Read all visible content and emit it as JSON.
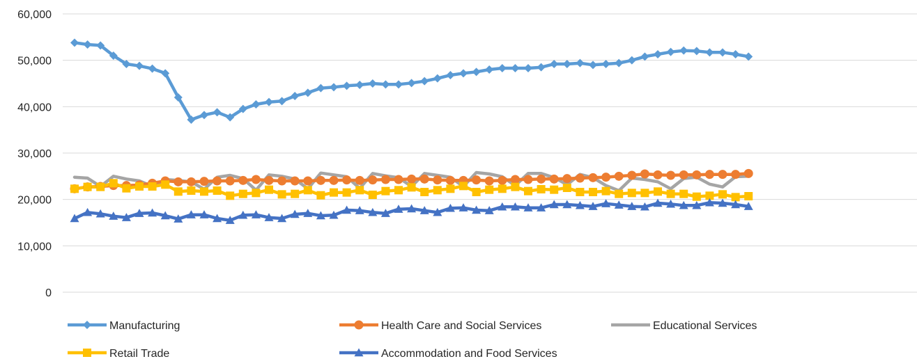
{
  "chart_data": {
    "type": "line",
    "title": "",
    "xlabel": "",
    "ylabel": "",
    "ylim": [
      0,
      60000
    ],
    "yticks": [
      0,
      10000,
      20000,
      30000,
      40000,
      50000,
      60000
    ],
    "ytick_labels": [
      "0",
      "10,000",
      "20,000",
      "30,000",
      "40,000",
      "50,000",
      "60,000"
    ],
    "grid": "horizontal",
    "legend_position": "bottom",
    "series": [
      {
        "name": "Manufacturing",
        "color": "#5B9BD5",
        "marker": "diamond",
        "values": [
          53800,
          53400,
          53200,
          51000,
          49200,
          48800,
          48200,
          47200,
          42000,
          37200,
          38200,
          38800,
          37700,
          39500,
          40500,
          41000,
          41200,
          42300,
          43000,
          44000,
          44200,
          44500,
          44700,
          45000,
          44800,
          44800,
          45100,
          45500,
          46100,
          46800,
          47200,
          47500,
          48000,
          48300,
          48300,
          48300,
          48500,
          49200,
          49200,
          49400,
          49000,
          49200,
          49400,
          50000,
          50800,
          51300,
          51800,
          52100,
          52000,
          51700,
          51700,
          51300,
          50800
        ]
      },
      {
        "name": "Health Care and Social Services",
        "color": "#ED7D31",
        "marker": "circle",
        "values": [
          22300,
          22700,
          22800,
          23000,
          23000,
          23100,
          23500,
          24000,
          23800,
          23800,
          23900,
          24000,
          24000,
          24100,
          24300,
          24100,
          24000,
          24000,
          24000,
          24100,
          24100,
          24200,
          24100,
          24200,
          24300,
          24300,
          24400,
          24400,
          24200,
          24100,
          24100,
          24200,
          24000,
          24100,
          24300,
          24300,
          24400,
          24400,
          24500,
          24600,
          24700,
          24800,
          25000,
          25200,
          25500,
          25300,
          25200,
          25300,
          25300,
          25400,
          25400,
          25400,
          25600
        ]
      },
      {
        "name": "Educational Services",
        "color": "#A5A5A5",
        "marker": "none",
        "values": [
          24800,
          24600,
          22800,
          25000,
          24400,
          24000,
          22800,
          24300,
          24100,
          23800,
          22200,
          24800,
          25200,
          24500,
          22000,
          25300,
          25000,
          24400,
          22300,
          25700,
          25300,
          24900,
          22400,
          25600,
          25100,
          24700,
          22800,
          25600,
          25200,
          24800,
          22800,
          25800,
          25500,
          24900,
          23000,
          25600,
          25600,
          24700,
          23200,
          25400,
          24700,
          23000,
          21900,
          24600,
          24300,
          23800,
          22300,
          24500,
          24800,
          23300,
          22700,
          24900,
          25000
        ]
      },
      {
        "name": "Retail Trade",
        "color": "#FFC000",
        "marker": "square",
        "values": [
          22300,
          22700,
          22700,
          23500,
          22400,
          22800,
          22800,
          23200,
          21700,
          21900,
          21700,
          21900,
          20800,
          21200,
          21400,
          22100,
          21100,
          21200,
          22000,
          20900,
          21500,
          21500,
          22000,
          21000,
          21800,
          22000,
          22600,
          21600,
          22000,
          22300,
          22900,
          21600,
          22100,
          22300,
          22700,
          21800,
          22200,
          22100,
          22500,
          21600,
          21600,
          21800,
          21200,
          21400,
          21400,
          21700,
          21200,
          21200,
          20600,
          20800,
          21100,
          20500,
          20700
        ]
      },
      {
        "name": "Accommodation and Food Services",
        "color": "#4472C4",
        "marker": "triangle",
        "values": [
          15900,
          17200,
          16900,
          16400,
          16100,
          17000,
          17100,
          16500,
          15800,
          16700,
          16700,
          15900,
          15500,
          16600,
          16700,
          16100,
          15900,
          16800,
          17000,
          16500,
          16600,
          17700,
          17600,
          17200,
          17000,
          17900,
          18000,
          17600,
          17200,
          18100,
          18200,
          17700,
          17600,
          18400,
          18400,
          18200,
          18200,
          18900,
          18900,
          18700,
          18500,
          19100,
          18800,
          18500,
          18400,
          19200,
          19000,
          18700,
          18700,
          19300,
          19200,
          18900,
          18500
        ]
      }
    ]
  }
}
